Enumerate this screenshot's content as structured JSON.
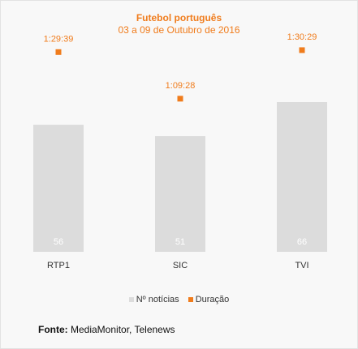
{
  "chart_data": {
    "type": "bar",
    "title": "Futebol português",
    "subtitle": "03 a 09 de Outubro de 2016",
    "categories": [
      "RTP1",
      "SIC",
      "TVI"
    ],
    "series": [
      {
        "name": "Nº notícias",
        "values": [
          56,
          51,
          66
        ],
        "color": "#dcdcdc"
      },
      {
        "name": "Duração",
        "values": [
          "1:29:39",
          "1:09:28",
          "1:30:29"
        ],
        "color": "#f07c1c"
      }
    ],
    "legend_position": "bottom",
    "grid": false
  },
  "source": {
    "label": "Fonte:",
    "text": "MediaMonitor, Telenews"
  }
}
